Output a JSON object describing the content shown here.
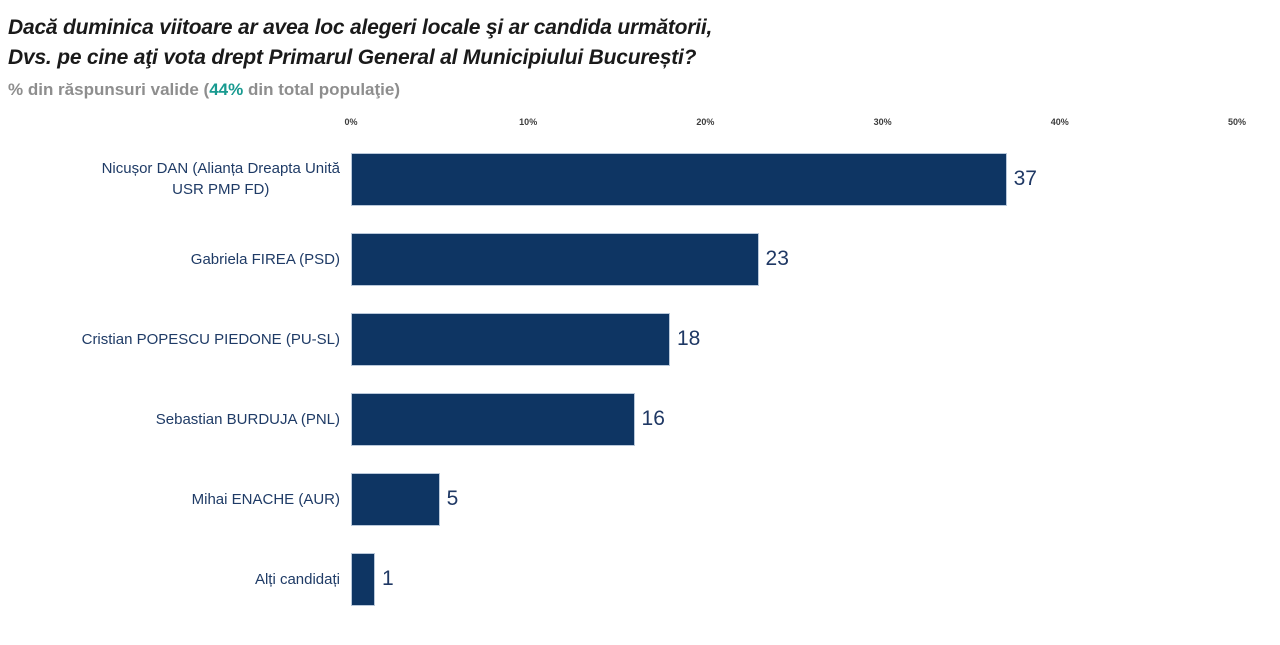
{
  "header": {
    "title_line1": "Dacă duminica viitoare ar avea loc alegeri locale şi ar candida următorii,",
    "title_line2": "Dvs. pe cine aţi vota drept Primarul General al Municipiului București?",
    "subtitle": {
      "prefix": "% din răspunsuri valide (",
      "highlight": "44%",
      "suffix": " din total populaţie)"
    }
  },
  "chart_data": {
    "type": "bar",
    "orientation": "horizontal",
    "title": "Dacă duminica viitoare ar avea loc alegeri locale şi ar candida următorii, Dvs. pe cine aţi vota drept Primarul General al Municipiului București?",
    "subtitle": "% din răspunsuri valide (44% din total populaţie)",
    "valid_sample_share": "44%",
    "categories": [
      "Nicușor DAN (Alianța Dreapta Unită USR PMP FD)",
      "Gabriela FIREA (PSD)",
      "Cristian POPESCU PIEDONE (PU-SL)",
      "Sebastian BURDUJA (PNL)",
      "Mihai ENACHE (AUR)",
      "Alți candidați"
    ],
    "category_display_lines": [
      [
        "Nicușor DAN (Alianța Dreapta Unită",
        "USR PMP FD)"
      ],
      [
        "Gabriela FIREA (PSD)"
      ],
      [
        "Cristian POPESCU PIEDONE (PU-SL)"
      ],
      [
        "Sebastian BURDUJA (PNL)"
      ],
      [
        "Mihai ENACHE (AUR)"
      ],
      [
        "Alți candidați"
      ]
    ],
    "values": [
      37,
      23,
      18,
      16,
      5,
      1
    ],
    "value_labels_shown": true,
    "xlim": [
      0,
      50
    ],
    "x_tick_labels": [
      "0%",
      "10%",
      "20%",
      "30%",
      "40%",
      "50%"
    ],
    "x_tick_values": [
      0,
      10,
      20,
      30,
      40,
      50
    ],
    "grid": false,
    "legend": false,
    "colors": {
      "bar": "#0e3563",
      "bar-border": "#b9c8da",
      "value-label": "#1f3864",
      "category-label": "#1f3b66",
      "title": "#1a1a1a",
      "subtitle": "#8e8e8e",
      "subtitle-highlight": "#189a90",
      "axis-tick": "#3d3d3d",
      "background": "#ffffff"
    }
  }
}
